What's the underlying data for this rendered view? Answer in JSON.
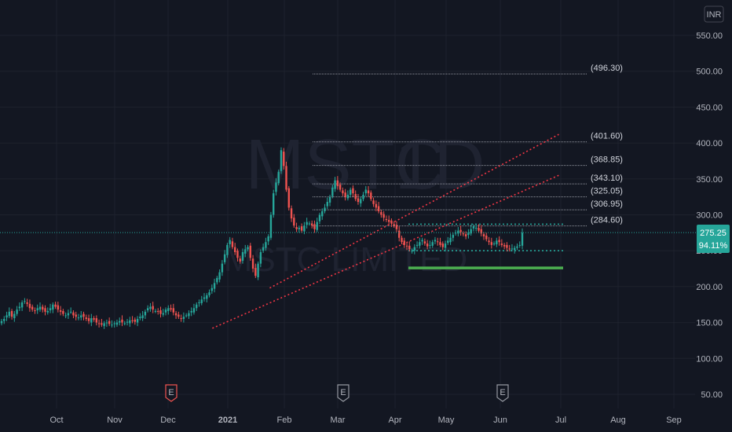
{
  "chart_data": {
    "type": "candlestick",
    "symbol": "MSTC",
    "interval": "1D",
    "company": "MSTC LIMITED",
    "currency": "INR",
    "y_axis": {
      "ticks": [
        50,
        100,
        150,
        200,
        250,
        300,
        350,
        400,
        450,
        500,
        550
      ],
      "tick_labels": [
        "50.00",
        "100.00",
        "150.00",
        "200.00",
        "250.00",
        "300.00",
        "350.00",
        "400.00",
        "450.00",
        "500.00",
        "550.00"
      ],
      "ylim": [
        40,
        560
      ]
    },
    "x_axis": {
      "labels": [
        "Oct",
        "Nov",
        "Dec",
        "2021",
        "Feb",
        "Mar",
        "Apr",
        "May",
        "Jun",
        "Jul",
        "Aug",
        "Sep"
      ]
    },
    "last_price": "275.25",
    "last_price_change": "94.11%",
    "fib_levels": [
      {
        "value": 496.3,
        "label": "(496.30)"
      },
      {
        "value": 401.6,
        "label": "(401.60)"
      },
      {
        "value": 368.85,
        "label": "(368.85)"
      },
      {
        "value": 343.1,
        "label": "(343.10)"
      },
      {
        "value": 325.05,
        "label": "(325.05)"
      },
      {
        "value": 306.95,
        "label": "(306.95)"
      },
      {
        "value": 284.6,
        "label": "(284.60)"
      }
    ],
    "earnings_markers": [
      "E",
      "E",
      "E"
    ],
    "price_series": [
      152,
      155,
      160,
      165,
      158,
      162,
      168,
      172,
      178,
      180,
      176,
      170,
      168,
      166,
      170,
      172,
      168,
      165,
      166,
      170,
      175,
      172,
      168,
      165,
      162,
      160,
      163,
      165,
      160,
      158,
      157,
      160,
      158,
      155,
      152,
      156,
      154,
      150,
      148,
      147,
      149,
      150,
      148,
      147,
      149,
      150,
      152,
      150,
      149,
      151,
      153,
      152,
      151,
      155,
      158,
      160,
      165,
      170,
      172,
      168,
      166,
      165,
      162,
      163,
      168,
      170,
      168,
      164,
      160,
      158,
      155,
      158,
      160,
      163,
      166,
      170,
      175,
      178,
      182,
      185,
      188,
      192,
      198,
      205,
      212,
      220,
      232,
      245,
      258,
      265,
      255,
      248,
      240,
      235,
      248,
      252,
      255,
      240,
      225,
      215,
      232,
      248,
      255,
      262,
      270,
      300,
      330,
      345,
      360,
      390,
      368,
      335,
      310,
      295,
      285,
      280,
      282,
      278,
      285,
      290,
      288,
      285,
      280,
      290,
      300,
      305,
      310,
      318,
      325,
      338,
      348,
      340,
      335,
      330,
      325,
      328,
      335,
      330,
      322,
      318,
      322,
      328,
      335,
      330,
      322,
      315,
      310,
      305,
      300,
      296,
      293,
      290,
      288,
      285,
      280,
      268,
      262,
      258,
      256,
      252,
      250,
      255,
      258,
      262,
      265,
      260,
      256,
      258,
      262,
      265,
      262,
      258,
      255,
      260,
      264,
      268,
      272,
      275,
      278,
      276,
      273,
      270,
      275,
      280,
      284,
      282,
      278,
      274,
      270,
      266,
      262,
      258,
      260,
      264,
      262,
      258,
      256,
      254,
      252,
      253,
      254,
      256,
      258,
      275
    ],
    "trendlines": [
      {
        "style": "dotted",
        "color": "#f23645",
        "from": {
          "date": "2020-12-24",
          "price": 142
        },
        "to": {
          "date": "2021-06-30",
          "price": 355
        }
      },
      {
        "style": "dotted",
        "color": "#f23645",
        "from": {
          "date": "2021-01-24",
          "price": 198
        },
        "to": {
          "date": "2021-06-30",
          "price": 412
        }
      }
    ],
    "range_lines": [
      {
        "style": "dotted",
        "color": "#26a69a",
        "price": 287
      },
      {
        "style": "dotted",
        "color": "#26a69a",
        "price": 250
      },
      {
        "style": "solid",
        "color": "#4caf50",
        "price": 226
      }
    ]
  },
  "colors": {
    "up": "#26a69a",
    "down": "#ef5350",
    "background": "#131722",
    "grid": "#1e222d",
    "badge": "#26a69a"
  }
}
